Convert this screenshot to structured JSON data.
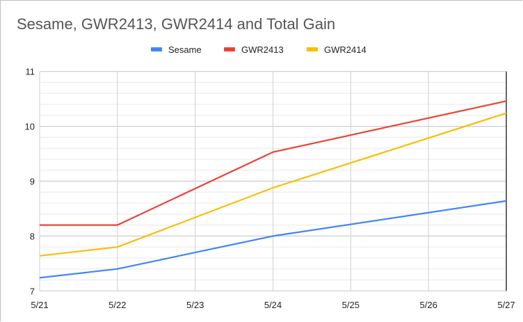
{
  "chart_data": {
    "type": "line",
    "title": "Sesame, GWR2413, GWR2414 and Total Gain",
    "xlabel": "",
    "ylabel": "",
    "categories": [
      "5/21",
      "5/22",
      "5/23",
      "5/24",
      "5/25",
      "5/26",
      "5/27"
    ],
    "ylim": [
      7,
      11
    ],
    "yticks": [
      "7",
      "8",
      "9",
      "10",
      "11"
    ],
    "minor_grid_step": 0.2,
    "grid": true,
    "legend_position": "top",
    "series": [
      {
        "name": "Sesame",
        "color": "#4285f4",
        "values": [
          7.24,
          7.4,
          null,
          8.0,
          null,
          null,
          8.64
        ]
      },
      {
        "name": "GWR2413",
        "color": "#ea4335",
        "values": [
          8.2,
          8.2,
          null,
          9.53,
          null,
          null,
          10.46
        ]
      },
      {
        "name": "GWR2414",
        "color": "#fbbc04",
        "values": [
          7.64,
          7.8,
          null,
          8.88,
          null,
          null,
          10.24
        ]
      }
    ]
  }
}
